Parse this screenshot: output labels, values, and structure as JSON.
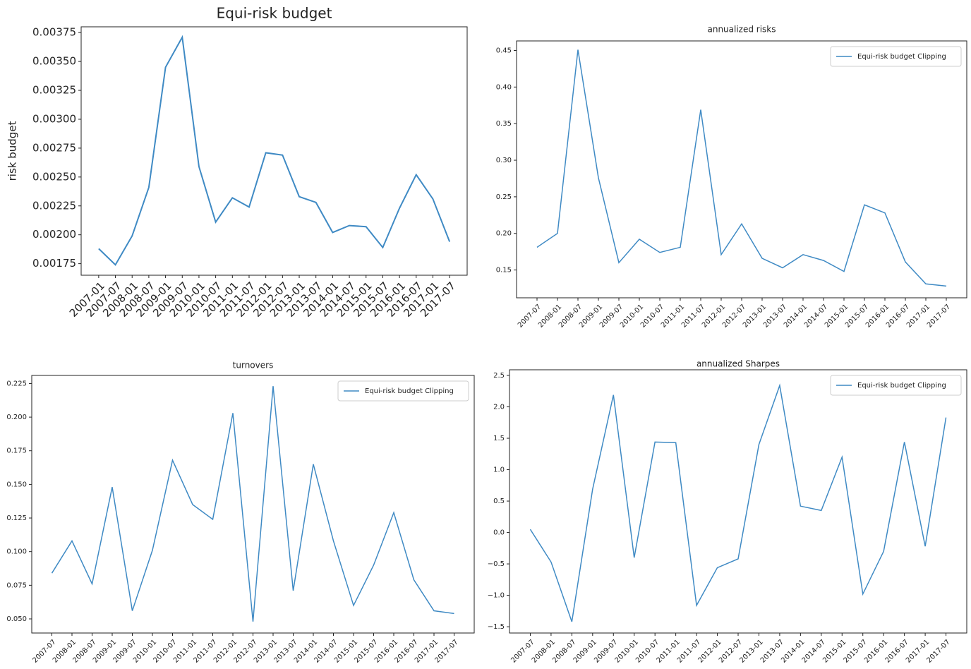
{
  "chart_data": [
    {
      "type": "line",
      "title": "Equi-risk budget",
      "ylabel": "risk budget",
      "color": "#3f8ac4",
      "categories": [
        "2007-01",
        "2007-07",
        "2008-01",
        "2008-07",
        "2009-01",
        "2009-07",
        "2010-01",
        "2010-07",
        "2011-01",
        "2011-07",
        "2012-01",
        "2012-07",
        "2013-01",
        "2013-07",
        "2014-01",
        "2014-07",
        "2015-01",
        "2015-07",
        "2016-01",
        "2016-07",
        "2017-01",
        "2017-07"
      ],
      "values": [
        0.00188,
        0.00174,
        0.00199,
        0.00241,
        0.00345,
        0.00371,
        0.00259,
        0.00211,
        0.00232,
        0.00224,
        0.00271,
        0.00269,
        0.00233,
        0.00228,
        0.00202,
        0.00208,
        0.00207,
        0.00189,
        0.00223,
        0.00252,
        0.00231,
        0.00194
      ],
      "ylim": [
        0.00165,
        0.0038
      ],
      "yticks": [
        0.00175,
        {
          "value": 0.002,
          "label": "0.00200"
        },
        0.00225,
        {
          "value": 0.0025,
          "label": "0.00250"
        },
        0.00275,
        {
          "value": 0.003,
          "label": "0.00300"
        },
        0.00325,
        {
          "value": 0.0035,
          "label": "0.00350"
        },
        0.00375
      ]
    },
    {
      "type": "line",
      "title": "annualized risks",
      "legend": "upper right",
      "categories": [
        "2007-07",
        "2008-01",
        "2008-07",
        "2009-01",
        "2009-07",
        "2010-01",
        "2010-07",
        "2011-01",
        "2011-07",
        "2012-01",
        "2012-07",
        "2013-01",
        "2013-07",
        "2014-01",
        "2014-07",
        "2015-01",
        "2015-07",
        "2016-01",
        "2016-07",
        "2017-01",
        "2017-07"
      ],
      "series": [
        {
          "name": "Equi-risk budget Clipping",
          "color": "#3f8ac4",
          "values": [
            0.181,
            0.2,
            0.451,
            0.276,
            0.16,
            0.192,
            0.174,
            0.181,
            0.369,
            0.171,
            0.213,
            0.166,
            0.153,
            0.171,
            0.163,
            0.148,
            0.239,
            0.228,
            0.161,
            0.131,
            0.128
          ]
        }
      ],
      "ylim": [
        0.112,
        0.463
      ],
      "yticks": [
        0.15,
        {
          "value": 0.2,
          "label": "0.20"
        },
        0.25,
        {
          "value": 0.3,
          "label": "0.30"
        },
        0.35,
        {
          "value": 0.4,
          "label": "0.40"
        },
        0.45
      ]
    },
    {
      "type": "line",
      "title": "turnovers",
      "legend": "upper right",
      "categories": [
        "2007-07",
        "2008-01",
        "2008-07",
        "2009-01",
        "2009-07",
        "2010-01",
        "2010-07",
        "2011-01",
        "2011-07",
        "2012-01",
        "2012-07",
        "2013-01",
        "2013-07",
        "2014-01",
        "2014-07",
        "2015-01",
        "2015-07",
        "2016-01",
        "2016-07",
        "2017-01",
        "2017-07"
      ],
      "series": [
        {
          "name": "Equi-risk budget Clipping",
          "color": "#3f8ac4",
          "values": [
            0.084,
            0.108,
            0.076,
            0.148,
            0.056,
            0.101,
            0.168,
            0.135,
            0.124,
            0.203,
            0.048,
            0.223,
            0.071,
            0.165,
            0.108,
            0.06,
            0.09,
            0.129,
            0.079,
            0.056,
            0.054
          ]
        }
      ],
      "ylim": [
        0.0395,
        0.231
      ],
      "yticks": [
        {
          "value": 0.05,
          "label": "0.050"
        },
        0.075,
        {
          "value": 0.1,
          "label": "0.100"
        },
        0.125,
        {
          "value": 0.15,
          "label": "0.150"
        },
        0.175,
        {
          "value": 0.2,
          "label": "0.200"
        },
        0.225
      ]
    },
    {
      "type": "line",
      "title": "annualized Sharpes",
      "legend": "upper right",
      "categories": [
        "2007-07",
        "2008-01",
        "2008-07",
        "2009-01",
        "2009-07",
        "2010-01",
        "2010-07",
        "2011-01",
        "2011-07",
        "2012-01",
        "2012-07",
        "2013-01",
        "2013-07",
        "2014-01",
        "2014-07",
        "2015-01",
        "2015-07",
        "2016-01",
        "2016-07",
        "2017-01",
        "2017-07"
      ],
      "series": [
        {
          "name": "Equi-risk budget Clipping",
          "color": "#3f8ac4",
          "values": [
            0.05,
            -0.47,
            -1.42,
            0.69,
            2.19,
            -0.4,
            1.44,
            1.43,
            -1.16,
            -0.56,
            -0.42,
            1.4,
            2.34,
            0.42,
            0.35,
            1.2,
            -0.98,
            -0.3,
            1.44,
            -0.22,
            1.83
          ]
        }
      ],
      "ylim": [
        -1.6,
        2.59
      ],
      "yticks": [
        {
          "value": -1.5,
          "label": "−1.5"
        },
        {
          "value": -1,
          "label": "−1.0"
        },
        {
          "value": -0.5,
          "label": "−0.5"
        },
        {
          "value": 0,
          "label": "0.0"
        },
        0.5,
        {
          "value": 1,
          "label": "1.0"
        },
        1.5,
        {
          "value": 2,
          "label": "2.0"
        },
        2.5
      ]
    }
  ]
}
